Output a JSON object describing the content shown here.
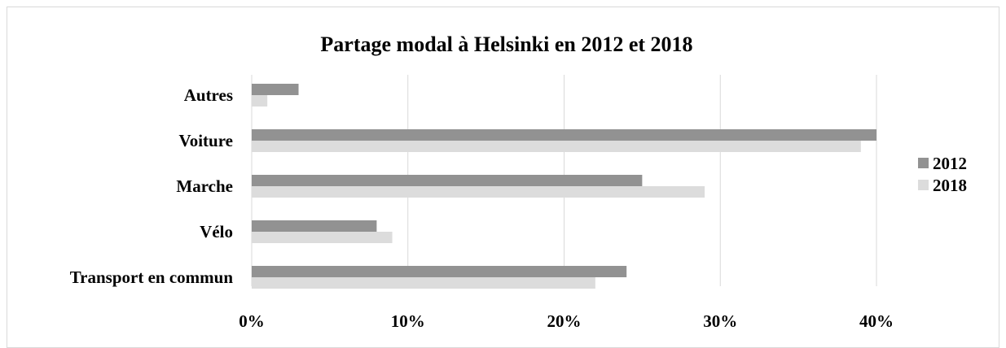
{
  "chart_data": {
    "type": "bar",
    "orientation": "horizontal",
    "title": "Partage modal à Helsinki en 2012 et 2018",
    "categories": [
      "Autres",
      "Voiture",
      "Marche",
      "Vélo",
      "Transport en commun"
    ],
    "series": [
      {
        "name": "2012",
        "values": [
          3,
          40,
          25,
          8,
          24
        ],
        "color": "#929292"
      },
      {
        "name": "2018",
        "values": [
          1,
          39,
          29,
          9,
          22
        ],
        "color": "#dcdcdc"
      }
    ],
    "x_ticks": [
      "0%",
      "10%",
      "20%",
      "30%",
      "40%"
    ],
    "xlim": [
      0,
      40
    ],
    "unit": "%",
    "grid": true,
    "grid_color": "#d9d9d9",
    "legend_position": "right"
  }
}
